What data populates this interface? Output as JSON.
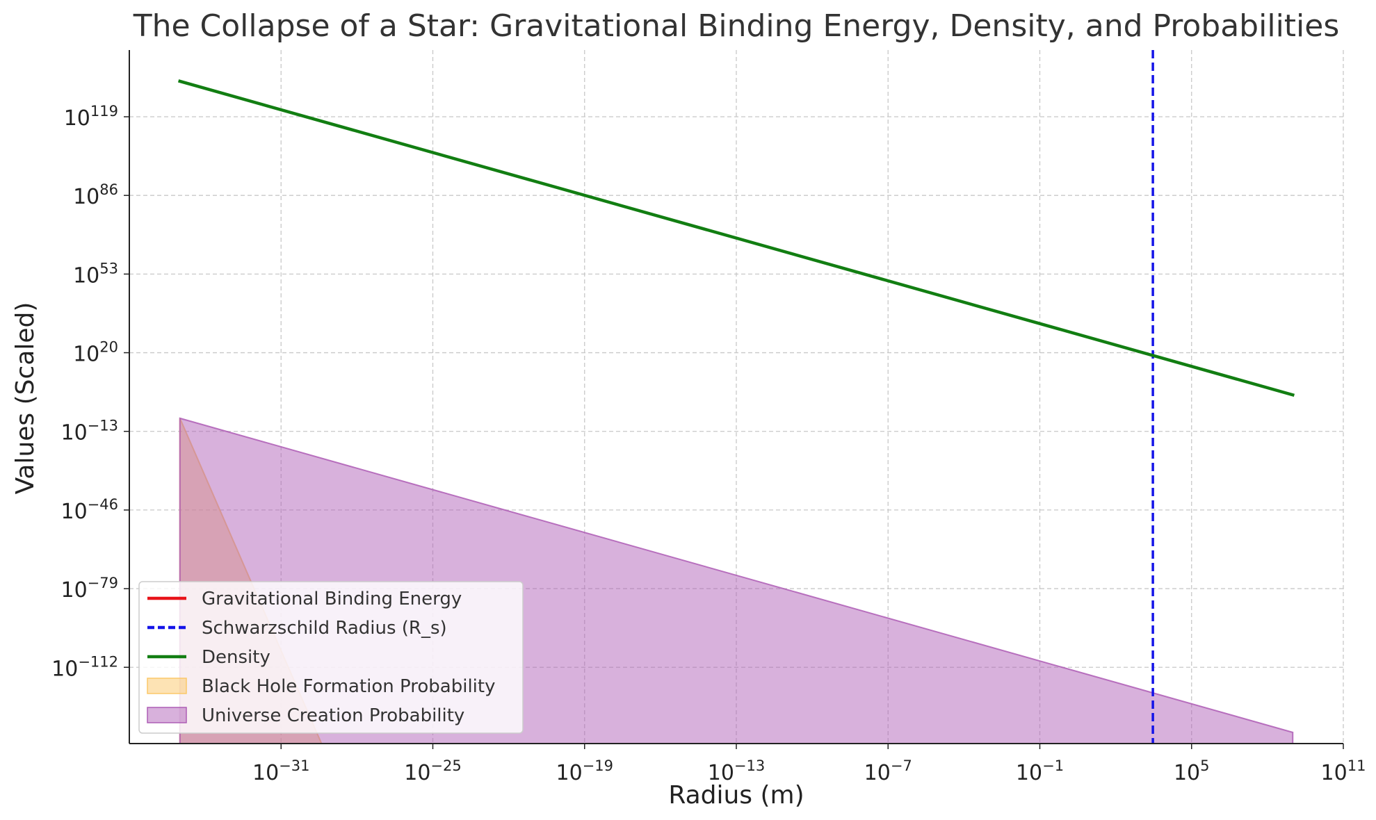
{
  "chart_data": {
    "type": "line",
    "title": "The Collapse of a Star: Gravitational Binding Energy, Density, and Probabilities",
    "xlabel": "Radius (m)",
    "ylabel": "Values (Scaled)",
    "x_scale": "log",
    "y_scale": "log",
    "xlim_log10": [
      -37,
      11
    ],
    "ylim_log10": [
      -144,
      147
    ],
    "x_ticks": [
      {
        "base": "10",
        "exp": "−31",
        "log": -31
      },
      {
        "base": "10",
        "exp": "−25",
        "log": -25
      },
      {
        "base": "10",
        "exp": "−19",
        "log": -19
      },
      {
        "base": "10",
        "exp": "−13",
        "log": -13
      },
      {
        "base": "10",
        "exp": "−7",
        "log": -7
      },
      {
        "base": "10",
        "exp": "−1",
        "log": -1
      },
      {
        "base": "10",
        "exp": "5",
        "log": 5
      },
      {
        "base": "10",
        "exp": "11",
        "log": 11
      }
    ],
    "y_ticks": [
      {
        "base": "10",
        "exp": "119",
        "log": 119
      },
      {
        "base": "10",
        "exp": "86",
        "log": 86
      },
      {
        "base": "10",
        "exp": "53",
        "log": 53
      },
      {
        "base": "10",
        "exp": "20",
        "log": 20
      },
      {
        "base": "10",
        "exp": "−13",
        "log": -13
      },
      {
        "base": "10",
        "exp": "−46",
        "log": -46
      },
      {
        "base": "10",
        "exp": "−79",
        "log": -79
      },
      {
        "base": "10",
        "exp": "−112",
        "log": -112
      }
    ],
    "grid": true,
    "legend_position": "lower-left",
    "series": [
      {
        "name": "Gravitational Binding Energy",
        "kind": "line",
        "color": "#e8141a",
        "dash": false,
        "points_log10": []
      },
      {
        "name": "Schwarzschild Radius (R_s)",
        "kind": "vline",
        "color": "#1414e8",
        "dash": true,
        "x_log10": 3.47
      },
      {
        "name": "Density",
        "kind": "line",
        "color": "#127e12",
        "dash": false,
        "points_log10": [
          [
            -35,
            133.9
          ],
          [
            9,
            2.3
          ]
        ]
      },
      {
        "name": "Black Hole Formation Probability",
        "kind": "area",
        "color": "#fbc869",
        "opacity": 0.5,
        "points_log10": [
          [
            -35,
            -7.5
          ],
          [
            -29.4,
            -144
          ]
        ]
      },
      {
        "name": "Universe Creation Probability",
        "kind": "area",
        "color": "#ae5db5",
        "opacity": 0.48,
        "points_log10": [
          [
            -35,
            -7.5
          ],
          [
            9,
            -139.3
          ]
        ]
      }
    ]
  }
}
